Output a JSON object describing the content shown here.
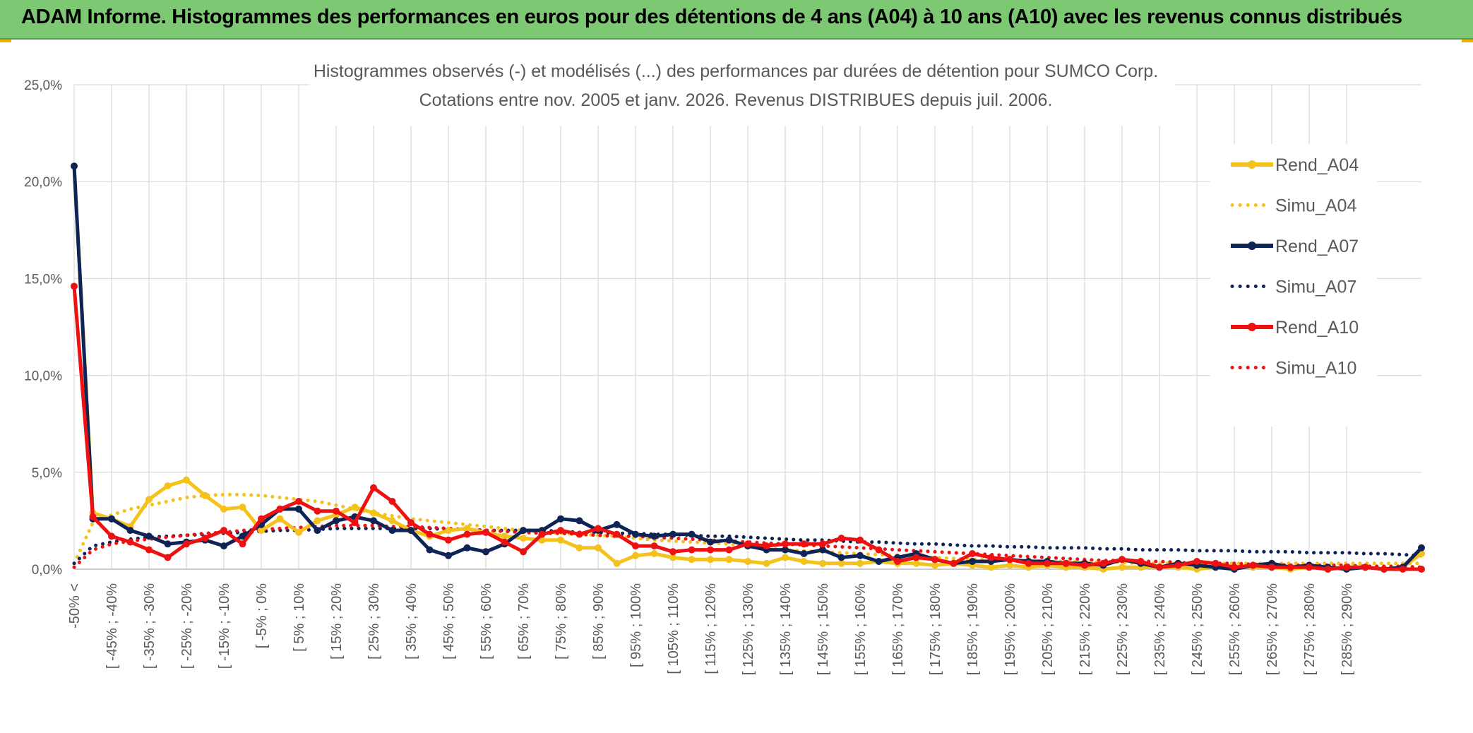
{
  "header": {
    "title": "ADAM Informe. Histogrammes des performances en euros pour des détentions de 4 ans (A04) à 10 ans (A10) avec les revenus connus distribués"
  },
  "chart_data": {
    "type": "line",
    "title": "Histogrammes observés (-) et modélisés (...) des performances par durées de détention pour SUMCO Corp.",
    "subtitle": "Cotations entre nov. 2005 et janv. 2026. Revenus DISTRIBUES depuis juil. 2006.",
    "xlabel": "",
    "ylabel": "",
    "ylim": [
      0,
      25
    ],
    "yticks": [
      "0,0%",
      "5,0%",
      "10,0%",
      "15,0%",
      "20,0%",
      "25,0%"
    ],
    "grid": true,
    "legend_position": "right",
    "x_tick_labels": [
      "-50% <",
      "[ -45% ; -40%",
      "[ -35% ; -30%",
      "[ -25% ; -20%",
      "[ -15% ; -10%",
      "[ -5% ; 0%",
      "[ 5% ; 10%",
      "[ 15% ; 20%",
      "[ 25% ; 30%",
      "[ 35% ; 40%",
      "[ 45% ; 50%",
      "[ 55% ; 60%",
      "[ 65% ; 70%",
      "[ 75% ; 80%",
      "[ 85% ; 90%",
      "[ 95% ; 100%",
      "[ 105% ; 110%",
      "[ 115% ; 120%",
      "[ 125% ; 130%",
      "[ 135% ; 140%",
      "[ 145% ; 150%",
      "[ 155% ; 160%",
      "[ 165% ; 170%",
      "[ 175% ; 180%",
      "[ 185% ; 190%",
      "[ 195% ; 200%",
      "[ 205% ; 210%",
      "[ 215% ; 220%",
      "[ 225% ; 230%",
      "[ 235% ; 240%",
      "[ 245% ; 250%",
      "[ 255% ; 260%",
      "[ 265% ; 270%",
      "[ 275% ; 280%",
      "[ 285% ; 290%"
    ],
    "series": [
      {
        "name": "Rend_A04",
        "color": "#f5c21b",
        "style": "solid",
        "markers": true,
        "values": [
          20.8,
          2.9,
          2.6,
          2.2,
          3.6,
          4.3,
          4.6,
          3.8,
          3.1,
          3.2,
          2.0,
          2.6,
          1.9,
          2.5,
          2.8,
          3.2,
          2.9,
          2.5,
          2.0,
          1.7,
          2.0,
          2.1,
          1.9,
          1.7,
          1.6,
          1.5,
          1.5,
          1.1,
          1.1,
          0.3,
          0.7,
          0.8,
          0.6,
          0.5,
          0.5,
          0.5,
          0.4,
          0.3,
          0.6,
          0.4,
          0.3,
          0.3,
          0.3,
          0.4,
          0.3,
          0.3,
          0.2,
          0.3,
          0.2,
          0.1,
          0.2,
          0.1,
          0.2,
          0.1,
          0.1,
          0.0,
          0.1,
          0.1,
          0.1,
          0.1,
          0.0,
          0.1,
          0.1,
          0.1,
          0.1,
          0.0,
          0.1,
          0.0,
          0.1,
          0.1,
          0.0,
          0.1,
          0.8
        ]
      },
      {
        "name": "Simu_A04",
        "color": "#f5c21b",
        "style": "dotted",
        "markers": false,
        "values": [
          0.3,
          2.4,
          2.8,
          3.1,
          3.3,
          3.5,
          3.7,
          3.8,
          3.85,
          3.85,
          3.8,
          3.7,
          3.6,
          3.5,
          3.3,
          3.1,
          2.9,
          2.75,
          2.6,
          2.5,
          2.4,
          2.3,
          2.2,
          2.1,
          2.0,
          1.9,
          1.85,
          1.8,
          1.75,
          1.7,
          1.6,
          1.5,
          1.45,
          1.4,
          1.35,
          1.3,
          1.2,
          1.1,
          1.0,
          0.95,
          0.9,
          0.85,
          0.8,
          0.75,
          0.7,
          0.65,
          0.6,
          0.55,
          0.5,
          0.5,
          0.45,
          0.45,
          0.4,
          0.4,
          0.35,
          0.35,
          0.35,
          0.3,
          0.3,
          0.3,
          0.3,
          0.3,
          0.3,
          0.3,
          0.3,
          0.3,
          0.3,
          0.3,
          0.3,
          0.3,
          0.3,
          0.3,
          0.3
        ]
      },
      {
        "name": "Rend_A07",
        "color": "#0e2356",
        "style": "solid",
        "markers": true,
        "values": [
          20.8,
          2.6,
          2.6,
          2.0,
          1.7,
          1.3,
          1.4,
          1.5,
          1.2,
          1.7,
          2.3,
          3.1,
          3.1,
          2.0,
          2.5,
          2.7,
          2.5,
          2.0,
          2.0,
          1.0,
          0.7,
          1.1,
          0.9,
          1.3,
          2.0,
          2.0,
          2.6,
          2.5,
          2.0,
          2.3,
          1.8,
          1.7,
          1.8,
          1.8,
          1.4,
          1.5,
          1.2,
          1.0,
          1.0,
          0.8,
          1.0,
          0.6,
          0.7,
          0.4,
          0.6,
          0.8,
          0.5,
          0.3,
          0.4,
          0.4,
          0.5,
          0.4,
          0.4,
          0.3,
          0.3,
          0.2,
          0.5,
          0.3,
          0.1,
          0.3,
          0.2,
          0.1,
          0.0,
          0.2,
          0.3,
          0.1,
          0.2,
          0.1,
          0.0,
          0.1,
          0.0,
          0.1,
          1.1
        ]
      },
      {
        "name": "Simu_A07",
        "color": "#0e2356",
        "style": "dotted",
        "markers": false,
        "values": [
          0.3,
          1.2,
          1.4,
          1.55,
          1.65,
          1.7,
          1.75,
          1.8,
          1.85,
          1.9,
          1.95,
          2.0,
          2.0,
          2.05,
          2.1,
          2.1,
          2.1,
          2.1,
          2.1,
          2.1,
          2.05,
          2.05,
          2.0,
          2.0,
          2.0,
          2.0,
          1.95,
          1.9,
          1.9,
          1.85,
          1.85,
          1.8,
          1.8,
          1.75,
          1.7,
          1.7,
          1.65,
          1.6,
          1.55,
          1.5,
          1.5,
          1.45,
          1.4,
          1.4,
          1.35,
          1.3,
          1.3,
          1.25,
          1.2,
          1.2,
          1.15,
          1.15,
          1.1,
          1.1,
          1.1,
          1.05,
          1.05,
          1.0,
          1.0,
          1.0,
          0.95,
          0.95,
          0.95,
          0.9,
          0.9,
          0.9,
          0.85,
          0.85,
          0.85,
          0.8,
          0.8,
          0.75,
          0.7
        ]
      },
      {
        "name": "Rend_A10",
        "color": "#ee1111",
        "style": "solid",
        "markers": true,
        "values": [
          14.6,
          2.7,
          1.7,
          1.4,
          1.0,
          0.6,
          1.3,
          1.6,
          2.0,
          1.3,
          2.6,
          3.1,
          3.5,
          3.0,
          3.0,
          2.4,
          4.2,
          3.5,
          2.4,
          1.8,
          1.5,
          1.8,
          1.9,
          1.4,
          0.9,
          1.8,
          2.0,
          1.8,
          2.1,
          1.8,
          1.2,
          1.2,
          0.9,
          1.0,
          1.0,
          1.0,
          1.3,
          1.2,
          1.3,
          1.3,
          1.3,
          1.6,
          1.5,
          1.0,
          0.4,
          0.6,
          0.5,
          0.3,
          0.8,
          0.6,
          0.5,
          0.3,
          0.3,
          0.3,
          0.2,
          0.3,
          0.5,
          0.4,
          0.1,
          0.2,
          0.4,
          0.3,
          0.1,
          0.2,
          0.1,
          0.1,
          0.1,
          0.0,
          0.1,
          0.1,
          0.0,
          0.0,
          0.0
        ]
      },
      {
        "name": "Simu_A10",
        "color": "#ee1111",
        "style": "dotted",
        "markers": false,
        "values": [
          0.1,
          1.0,
          1.3,
          1.45,
          1.55,
          1.65,
          1.75,
          1.85,
          1.9,
          2.0,
          2.05,
          2.1,
          2.15,
          2.2,
          2.25,
          2.25,
          2.25,
          2.2,
          2.2,
          2.15,
          2.1,
          2.05,
          2.0,
          1.95,
          1.9,
          1.85,
          1.85,
          1.8,
          1.75,
          1.7,
          1.7,
          1.65,
          1.6,
          1.55,
          1.5,
          1.45,
          1.4,
          1.35,
          1.3,
          1.25,
          1.2,
          1.15,
          1.1,
          1.05,
          1.0,
          0.95,
          0.9,
          0.85,
          0.8,
          0.75,
          0.7,
          0.65,
          0.6,
          0.55,
          0.5,
          0.45,
          0.45,
          0.4,
          0.4,
          0.35,
          0.3,
          0.3,
          0.3,
          0.25,
          0.25,
          0.2,
          0.2,
          0.2,
          0.2,
          0.15,
          0.15,
          0.15,
          0.1
        ]
      }
    ]
  }
}
